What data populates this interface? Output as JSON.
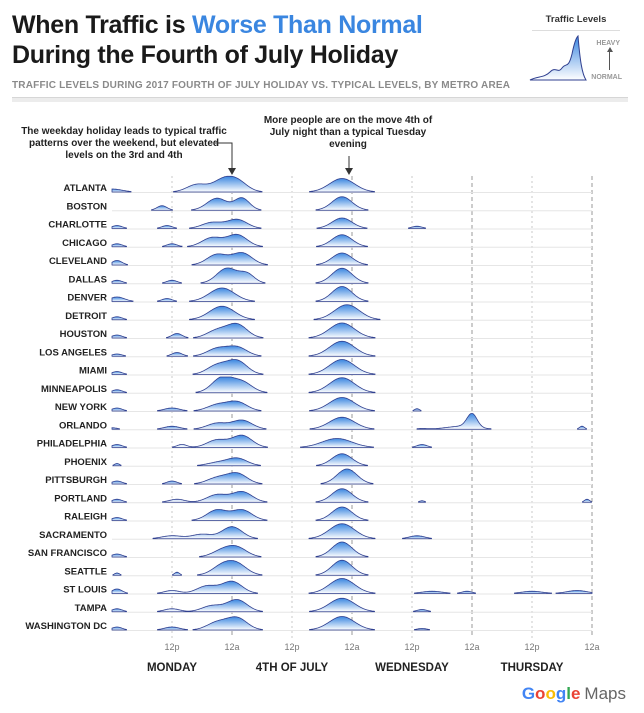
{
  "title": {
    "prefix": "When Traffic is ",
    "highlight": "Worse Than Normal",
    "line2": "During the Fourth of July Holiday"
  },
  "subtitle": "TRAFFIC LEVELS DURING 2017 FOURTH OF JULY HOLIDAY VS. TYPICAL LEVELS, BY METRO AREA",
  "legend": {
    "title": "Traffic Levels",
    "heavy": "HEAVY",
    "normal": "NORMAL"
  },
  "annotations": {
    "left": "The weekday holiday leads to typical traffic patterns over the weekend, but elevated levels on the 3rd and 4th",
    "right": "More people are on the move 4th of July night than a typical Tuesday evening"
  },
  "footer": {
    "g1": "G",
    "g2": "o",
    "g3": "o",
    "g4": "g",
    "g5": "l",
    "g6": "e",
    "product": "Maps"
  },
  "colors": {
    "accent": "#3a86e0",
    "line": "#2f3f8f",
    "fill_top": "#3a86e0",
    "fill_bottom": "#ffffff"
  },
  "chart_data": {
    "type": "ridgeline",
    "title": "When Traffic is Worse Than Normal During the Fourth of July Holiday",
    "series_units": "hours from Monday 00:00 (0-96); value = traffic above normal (0-1)",
    "x_ticks": [
      "12p",
      "12a",
      "12p",
      "12a",
      "12p",
      "12a",
      "12p",
      "12a"
    ],
    "days": [
      "MONDAY",
      "4TH OF JULY",
      "WEDNESDAY",
      "THURSDAY"
    ],
    "cities": [
      {
        "name": "ATLANTA",
        "peaks": [
          [
            0,
            0.2,
            2
          ],
          [
            17,
            0.5,
            2
          ],
          [
            22,
            0.7,
            2
          ],
          [
            25,
            0.7,
            2
          ],
          [
            46,
            0.9,
            2.5
          ]
        ]
      },
      {
        "name": "BOSTON",
        "peaks": [
          [
            10,
            0.3,
            1
          ],
          [
            21,
            0.8,
            2
          ],
          [
            26,
            0.8,
            1.5
          ],
          [
            46,
            0.9,
            2
          ]
        ]
      },
      {
        "name": "CHARLOTTE",
        "peaks": [
          [
            1,
            0.2,
            1
          ],
          [
            11,
            0.2,
            1
          ],
          [
            20,
            0.4,
            2
          ],
          [
            25,
            0.6,
            2
          ],
          [
            46,
            0.7,
            2
          ],
          [
            61,
            0.15,
            1
          ]
        ]
      },
      {
        "name": "CHICAGO",
        "peaks": [
          [
            1,
            0.2,
            1
          ],
          [
            12,
            0.2,
            1
          ],
          [
            20,
            0.6,
            2
          ],
          [
            25,
            0.8,
            2
          ],
          [
            46,
            0.8,
            2
          ]
        ]
      },
      {
        "name": "CLEVELAND",
        "peaks": [
          [
            1,
            0.3,
            1
          ],
          [
            21,
            0.7,
            2
          ],
          [
            26,
            0.8,
            2
          ],
          [
            46,
            0.8,
            2
          ]
        ]
      },
      {
        "name": "DALLAS",
        "peaks": [
          [
            1,
            0.2,
            1
          ],
          [
            12,
            0.2,
            1
          ],
          [
            23,
            1.0,
            2
          ],
          [
            27,
            0.6,
            1.5
          ],
          [
            46,
            1.0,
            2
          ]
        ]
      },
      {
        "name": "DENVER",
        "peaks": [
          [
            1,
            0.3,
            1.5
          ],
          [
            11,
            0.2,
            1
          ],
          [
            22,
            0.9,
            2.5
          ],
          [
            46,
            1.0,
            2
          ]
        ]
      },
      {
        "name": "DETROIT",
        "peaks": [
          [
            1,
            0.2,
            1
          ],
          [
            22,
            0.9,
            2.5
          ],
          [
            47,
            1.0,
            2.5
          ]
        ]
      },
      {
        "name": "HOUSTON",
        "peaks": [
          [
            1,
            0.2,
            1
          ],
          [
            13,
            0.3,
            1
          ],
          [
            21,
            0.5,
            2
          ],
          [
            25,
            0.9,
            2
          ],
          [
            46,
            1.0,
            2.5
          ]
        ]
      },
      {
        "name": "LOS ANGELES",
        "peaks": [
          [
            1,
            0.15,
            1
          ],
          [
            13,
            0.25,
            1
          ],
          [
            21,
            0.5,
            2
          ],
          [
            25,
            0.6,
            2
          ],
          [
            46,
            1.0,
            2.5
          ]
        ]
      },
      {
        "name": "MIAMI",
        "peaks": [
          [
            1,
            0.2,
            1
          ],
          [
            21,
            0.6,
            2
          ],
          [
            25,
            0.9,
            2
          ],
          [
            46,
            1.0,
            2.5
          ]
        ]
      },
      {
        "name": "MINNEAPOLIS",
        "peaks": [
          [
            1,
            0.2,
            1
          ],
          [
            22,
            1.0,
            2
          ],
          [
            26,
            0.7,
            2
          ],
          [
            46,
            1.0,
            2.5
          ]
        ]
      },
      {
        "name": "NEW YORK",
        "peaks": [
          [
            1,
            0.2,
            1
          ],
          [
            12,
            0.2,
            1.5
          ],
          [
            21,
            0.4,
            2
          ],
          [
            25,
            0.6,
            2
          ],
          [
            46,
            0.9,
            2.5
          ],
          [
            61,
            0.15,
            0.5
          ]
        ]
      },
      {
        "name": "ORLANDO",
        "peaks": [
          [
            0,
            0.1,
            1
          ],
          [
            12,
            0.2,
            1.5
          ],
          [
            21,
            0.4,
            2
          ],
          [
            26,
            0.6,
            2
          ],
          [
            46,
            0.8,
            2.5
          ],
          [
            62,
            0.05,
            1
          ],
          [
            70,
            0.2,
            3
          ],
          [
            72,
            0.9,
            1
          ],
          [
            94,
            0.2,
            0.5
          ]
        ]
      },
      {
        "name": "PHILADELPHIA",
        "peaks": [
          [
            1,
            0.2,
            1
          ],
          [
            14,
            0.2,
            1
          ],
          [
            21,
            0.5,
            2
          ],
          [
            26,
            0.8,
            2
          ],
          [
            45,
            0.6,
            3
          ],
          [
            62,
            0.2,
            1
          ]
        ]
      },
      {
        "name": "PHOENIX",
        "peaks": [
          [
            1,
            0.15,
            0.5
          ],
          [
            21,
            0.2,
            2
          ],
          [
            25,
            0.5,
            2
          ],
          [
            46,
            0.8,
            2
          ]
        ]
      },
      {
        "name": "PITTSBURGH",
        "peaks": [
          [
            1,
            0.2,
            1
          ],
          [
            12,
            0.2,
            1
          ],
          [
            21,
            0.4,
            2
          ],
          [
            25,
            0.7,
            2
          ],
          [
            47,
            1.0,
            2
          ]
        ]
      },
      {
        "name": "PORTLAND",
        "peaks": [
          [
            1,
            0.2,
            1
          ],
          [
            13,
            0.2,
            1.5
          ],
          [
            21,
            0.5,
            2
          ],
          [
            26,
            0.7,
            2
          ],
          [
            46,
            0.9,
            2
          ],
          [
            62,
            0.1,
            0.5
          ],
          [
            95,
            0.2,
            0.5
          ]
        ]
      },
      {
        "name": "RALEIGH",
        "peaks": [
          [
            1,
            0.2,
            1
          ],
          [
            21,
            0.7,
            2
          ],
          [
            26,
            0.7,
            2
          ],
          [
            46,
            0.9,
            2
          ]
        ]
      },
      {
        "name": "SACRAMENTO",
        "peaks": [
          [
            12,
            0.2,
            2
          ],
          [
            18,
            0.3,
            2
          ],
          [
            24,
            0.8,
            2
          ],
          [
            46,
            1.0,
            2.5
          ],
          [
            61,
            0.2,
            1.5
          ]
        ]
      },
      {
        "name": "SAN FRANCISCO",
        "peaks": [
          [
            1,
            0.2,
            1
          ],
          [
            22,
            0.4,
            2
          ],
          [
            25,
            0.6,
            2
          ],
          [
            46,
            1.0,
            2
          ]
        ]
      },
      {
        "name": "SEATTLE",
        "peaks": [
          [
            1,
            0.15,
            0.5
          ],
          [
            13,
            0.2,
            0.5
          ],
          [
            22,
            0.6,
            2
          ],
          [
            25,
            0.7,
            2
          ],
          [
            46,
            1.0,
            2
          ]
        ]
      },
      {
        "name": "ST LOUIS",
        "peaks": [
          [
            1,
            0.3,
            1
          ],
          [
            12,
            0.2,
            1.5
          ],
          [
            19,
            0.5,
            2
          ],
          [
            24,
            0.8,
            2
          ],
          [
            46,
            1.0,
            2.5
          ],
          [
            64,
            0.15,
            2
          ],
          [
            71,
            0.15,
            1
          ],
          [
            84,
            0.15,
            2
          ],
          [
            93,
            0.2,
            2
          ]
        ]
      },
      {
        "name": "TAMPA",
        "peaks": [
          [
            1,
            0.2,
            1
          ],
          [
            12,
            0.2,
            1.5
          ],
          [
            20,
            0.4,
            2
          ],
          [
            25,
            0.8,
            2
          ],
          [
            46,
            0.9,
            2.5
          ],
          [
            62,
            0.15,
            1
          ]
        ]
      },
      {
        "name": "WASHINGTON DC",
        "peaks": [
          [
            1,
            0.2,
            1
          ],
          [
            12,
            0.2,
            1.5
          ],
          [
            21,
            0.5,
            2
          ],
          [
            25,
            0.8,
            2
          ],
          [
            46,
            0.9,
            2.5
          ],
          [
            62,
            0.1,
            1
          ]
        ]
      }
    ]
  }
}
